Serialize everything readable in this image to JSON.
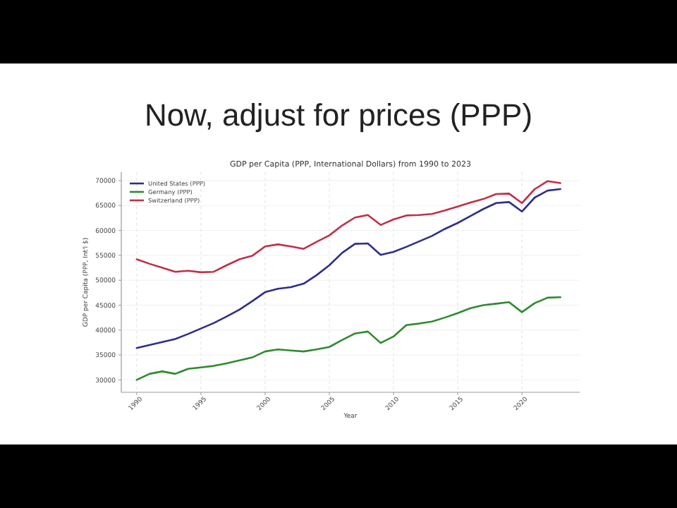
{
  "chart_data": {
    "type": "line",
    "title": "GDP per Capita (PPP, International Dollars) from 1990 to 2023",
    "subtitle": "Now, adjust for prices (PPP)",
    "xlabel": "Year",
    "ylabel": "GDP per Capita (PPP, Int'l $)",
    "x": [
      1990,
      1991,
      1992,
      1993,
      1994,
      1995,
      1996,
      1997,
      1998,
      1999,
      2000,
      2001,
      2002,
      2003,
      2004,
      2005,
      2006,
      2007,
      2008,
      2009,
      2010,
      2011,
      2012,
      2013,
      2014,
      2015,
      2016,
      2017,
      2018,
      2019,
      2020,
      2021,
      2022,
      2023
    ],
    "series": [
      {
        "name": "United States (PPP)",
        "color": "#2e2e8c",
        "values": [
          36400,
          37000,
          37600,
          38200,
          39200,
          40300,
          41400,
          42700,
          44100,
          45800,
          47600,
          48300,
          48600,
          49300,
          51000,
          53000,
          55500,
          57300,
          57400,
          55100,
          55700,
          56700,
          57800,
          58900,
          60300,
          61500,
          62900,
          64300,
          65500,
          65700,
          63800,
          66600,
          68000,
          68300
        ]
      },
      {
        "name": "Germany (PPP)",
        "color": "#2e8b2e",
        "values": [
          30000,
          31200,
          31700,
          31200,
          32200,
          32500,
          32800,
          33300,
          33900,
          34500,
          35700,
          36100,
          35900,
          35700,
          36100,
          36600,
          38000,
          39300,
          39700,
          37400,
          38700,
          41000,
          41300,
          41700,
          42500,
          43400,
          44400,
          45000,
          45300,
          45600,
          43600,
          45400,
          46500,
          46600
        ]
      },
      {
        "name": "Switzerland (PPP)",
        "color": "#c0304a",
        "values": [
          54200,
          53300,
          52500,
          51700,
          51900,
          51600,
          51700,
          53000,
          54200,
          54900,
          56800,
          57200,
          56800,
          56300,
          57700,
          59000,
          61000,
          62600,
          63100,
          61100,
          62200,
          63000,
          63100,
          63300,
          64000,
          64800,
          65600,
          66300,
          67300,
          67400,
          65500,
          68300,
          69900,
          69500
        ]
      }
    ],
    "xlim": [
      1988.8,
      2024.5
    ],
    "xticks": [
      1990,
      1995,
      2000,
      2005,
      2010,
      2015,
      2020
    ],
    "ylim": [
      27500,
      71700
    ],
    "yticks": [
      30000,
      35000,
      40000,
      45000,
      50000,
      55000,
      60000,
      65000,
      70000
    ],
    "grid": true,
    "legend": "top left"
  }
}
